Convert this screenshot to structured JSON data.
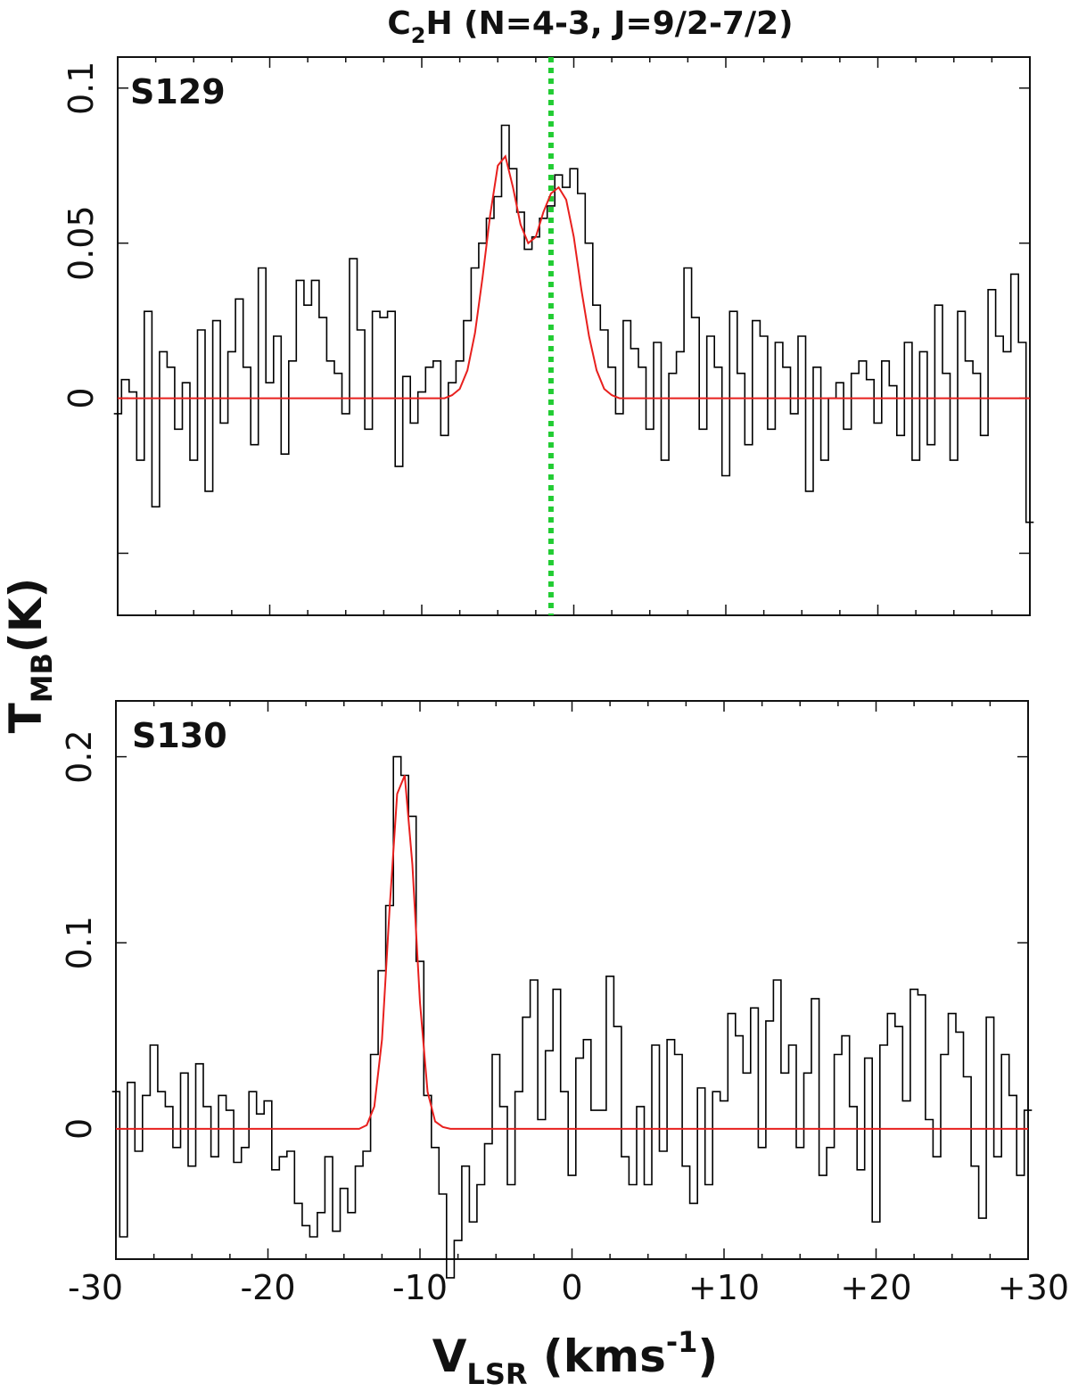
{
  "figure": {
    "title_main": "C",
    "title_sub": "2",
    "title_rest": "H (N=4-3, J=9/2-7/2)",
    "ylabel_main": "T",
    "ylabel_sub": "MB",
    "ylabel_rest": "(K)",
    "xlabel_main": "V",
    "xlabel_sub": "LSR",
    "xlabel_rest": " (kms",
    "xlabel_sup": "-1",
    "xlabel_close": ")"
  },
  "chart_data": [
    {
      "type": "line",
      "panel_label": "S129",
      "xlim": [
        -30,
        30
      ],
      "ylim": [
        -0.07,
        0.11
      ],
      "x_tick_labels": [
        "-30",
        "-20",
        "-10",
        "0",
        "+10",
        "+20",
        "+30"
      ],
      "x_ticks": [
        -30,
        -20,
        -10,
        0,
        10,
        20,
        30
      ],
      "y_ticks": [
        0,
        0.05,
        0.1
      ],
      "y_tick_labels": [
        "0",
        "0.05",
        "0.1"
      ],
      "grid": false,
      "reference_line": {
        "x": -1.5,
        "color": "#22cc33",
        "style": "dotted"
      },
      "series": [
        {
          "style": "step",
          "color": "#000000",
          "x": [
            -30.0,
            -29.5,
            -29.0,
            -28.5,
            -28.0,
            -27.5,
            -27.0,
            -26.5,
            -26.0,
            -25.5,
            -25.0,
            -24.5,
            -24.0,
            -23.5,
            -23.0,
            -22.5,
            -22.0,
            -21.5,
            -21.0,
            -20.5,
            -20.0,
            -19.5,
            -19.0,
            -18.5,
            -18.0,
            -17.5,
            -17.0,
            -16.5,
            -16.0,
            -15.5,
            -15.0,
            -14.5,
            -14.0,
            -13.5,
            -13.0,
            -12.5,
            -12.0,
            -11.5,
            -11.0,
            -10.5,
            -10.0,
            -9.5,
            -9.0,
            -8.5,
            -8.0,
            -7.5,
            -7.0,
            -6.5,
            -6.0,
            -5.5,
            -5.0,
            -4.5,
            -4.0,
            -3.5,
            -3.0,
            -2.5,
            -2.0,
            -1.5,
            -1.0,
            -0.5,
            0.0,
            0.5,
            1.0,
            1.5,
            2.0,
            2.5,
            3.0,
            3.5,
            4.0,
            4.5,
            5.0,
            5.5,
            6.0,
            6.5,
            7.0,
            7.5,
            8.0,
            8.5,
            9.0,
            9.5,
            10.0,
            10.5,
            11.0,
            11.5,
            12.0,
            12.5,
            13.0,
            13.5,
            14.0,
            14.5,
            15.0,
            15.5,
            16.0,
            16.5,
            17.0,
            17.5,
            18.0,
            18.5,
            19.0,
            19.5,
            20.0,
            20.5,
            21.0,
            21.5,
            22.0,
            22.5,
            23.0,
            23.5,
            24.0,
            24.5,
            25.0,
            25.5,
            26.0,
            26.5,
            27.0,
            27.5,
            28.0,
            28.5,
            29.0,
            29.5,
            30.0
          ],
          "y": [
            -0.005,
            0.006,
            0.002,
            -0.02,
            0.028,
            -0.035,
            0.015,
            0.01,
            -0.01,
            0.005,
            -0.02,
            0.022,
            -0.03,
            0.025,
            -0.008,
            0.015,
            0.032,
            0.01,
            -0.015,
            0.042,
            0.005,
            0.02,
            -0.018,
            0.012,
            0.038,
            0.03,
            0.038,
            0.026,
            0.012,
            0.008,
            -0.005,
            0.045,
            0.022,
            -0.01,
            0.028,
            0.026,
            0.028,
            -0.022,
            0.007,
            -0.008,
            0.002,
            0.01,
            0.012,
            -0.012,
            0.005,
            0.012,
            0.025,
            0.042,
            0.05,
            0.058,
            0.065,
            0.088,
            0.074,
            0.06,
            0.048,
            0.052,
            0.058,
            0.062,
            0.072,
            0.068,
            0.074,
            0.066,
            0.05,
            0.03,
            0.022,
            0.01,
            -0.005,
            0.025,
            0.016,
            0.01,
            -0.01,
            0.018,
            -0.02,
            0.008,
            0.015,
            0.042,
            0.026,
            -0.01,
            0.02,
            0.01,
            -0.025,
            0.028,
            0.008,
            -0.015,
            0.025,
            0.02,
            -0.01,
            0.018,
            0.01,
            -0.005,
            0.02,
            -0.03,
            0.01,
            -0.02,
            0.0,
            0.005,
            -0.01,
            0.008,
            0.012,
            0.006,
            -0.008,
            0.012,
            0.004,
            -0.012,
            0.018,
            -0.02,
            0.015,
            -0.015,
            0.03,
            0.008,
            -0.02,
            0.028,
            0.012,
            0.008,
            -0.012,
            0.035,
            0.02,
            0.015,
            0.04,
            0.018,
            -0.04
          ]
        },
        {
          "style": "line",
          "color": "#e8201e",
          "x": [
            -30,
            -8.5,
            -8.0,
            -7.5,
            -7.0,
            -6.5,
            -6.0,
            -5.5,
            -5.0,
            -4.5,
            -4.0,
            -3.5,
            -3.0,
            -2.5,
            -2.0,
            -1.5,
            -1.0,
            -0.5,
            0.0,
            0.5,
            1.0,
            1.5,
            2.0,
            2.5,
            3.0,
            3.5,
            30
          ],
          "y": [
            0.0,
            0.0,
            0.001,
            0.003,
            0.009,
            0.021,
            0.039,
            0.059,
            0.075,
            0.078,
            0.068,
            0.056,
            0.05,
            0.052,
            0.06,
            0.066,
            0.068,
            0.064,
            0.052,
            0.035,
            0.02,
            0.009,
            0.003,
            0.001,
            0.0,
            0.0,
            0.0
          ]
        }
      ]
    },
    {
      "type": "line",
      "panel_label": "S130",
      "xlim": [
        -30,
        30
      ],
      "ylim": [
        -0.07,
        0.23
      ],
      "x_tick_labels": [
        "-30",
        "-20",
        "-10",
        "0",
        "+10",
        "+20",
        "+30"
      ],
      "x_ticks": [
        -30,
        -20,
        -10,
        0,
        10,
        20,
        30
      ],
      "y_ticks": [
        0,
        0.1,
        0.2
      ],
      "y_tick_labels": [
        "0",
        "0.1",
        "0.2"
      ],
      "grid": false,
      "series": [
        {
          "style": "step",
          "color": "#000000",
          "x": [
            -30.0,
            -29.5,
            -29.0,
            -28.5,
            -28.0,
            -27.5,
            -27.0,
            -26.5,
            -26.0,
            -25.5,
            -25.0,
            -24.5,
            -24.0,
            -23.5,
            -23.0,
            -22.5,
            -22.0,
            -21.5,
            -21.0,
            -20.5,
            -20.0,
            -19.5,
            -19.0,
            -18.5,
            -18.0,
            -17.5,
            -17.0,
            -16.5,
            -16.0,
            -15.5,
            -15.0,
            -14.5,
            -14.0,
            -13.5,
            -13.0,
            -12.5,
            -12.0,
            -11.5,
            -11.0,
            -10.5,
            -10.0,
            -9.5,
            -9.0,
            -8.5,
            -8.0,
            -7.5,
            -7.0,
            -6.5,
            -6.0,
            -5.5,
            -5.0,
            -4.5,
            -4.0,
            -3.5,
            -3.0,
            -2.5,
            -2.0,
            -1.5,
            -1.0,
            -0.5,
            0.0,
            0.5,
            1.0,
            1.5,
            2.0,
            2.5,
            3.0,
            3.5,
            4.0,
            4.5,
            5.0,
            5.5,
            6.0,
            6.5,
            7.0,
            7.5,
            8.0,
            8.5,
            9.0,
            9.5,
            10.0,
            10.5,
            11.0,
            11.5,
            12.0,
            12.5,
            13.0,
            13.5,
            14.0,
            14.5,
            15.0,
            15.5,
            16.0,
            16.5,
            17.0,
            17.5,
            18.0,
            18.5,
            19.0,
            19.5,
            20.0,
            20.5,
            21.0,
            21.5,
            22.0,
            22.5,
            23.0,
            23.5,
            24.0,
            24.5,
            25.0,
            25.5,
            26.0,
            26.5,
            27.0,
            27.5,
            28.0,
            28.5,
            29.0,
            29.5,
            30.0
          ],
          "y": [
            0.02,
            -0.058,
            0.025,
            -0.012,
            0.018,
            0.045,
            0.02,
            0.012,
            -0.01,
            0.03,
            -0.02,
            0.035,
            0.012,
            -0.015,
            0.018,
            0.01,
            -0.018,
            -0.01,
            0.02,
            0.008,
            0.015,
            -0.022,
            -0.015,
            -0.012,
            -0.04,
            -0.052,
            -0.058,
            -0.045,
            -0.015,
            -0.055,
            -0.032,
            -0.045,
            -0.02,
            -0.012,
            0.04,
            0.085,
            0.12,
            0.2,
            0.19,
            0.168,
            0.09,
            0.018,
            -0.01,
            -0.035,
            -0.08,
            -0.06,
            -0.02,
            -0.05,
            -0.03,
            -0.008,
            0.04,
            0.012,
            -0.03,
            0.02,
            0.06,
            0.08,
            0.005,
            0.042,
            0.075,
            0.02,
            -0.025,
            0.038,
            0.048,
            0.01,
            0.01,
            0.082,
            0.055,
            -0.015,
            -0.03,
            0.012,
            -0.03,
            0.045,
            -0.012,
            0.048,
            0.04,
            -0.02,
            -0.04,
            0.022,
            -0.03,
            0.02,
            0.015,
            0.062,
            0.05,
            0.03,
            0.065,
            -0.01,
            0.058,
            0.08,
            0.03,
            0.045,
            -0.01,
            0.03,
            0.07,
            -0.025,
            -0.01,
            0.04,
            0.05,
            0.012,
            -0.022,
            0.038,
            -0.05,
            0.045,
            0.062,
            0.055,
            0.015,
            0.075,
            0.072,
            0.005,
            -0.015,
            0.04,
            0.062,
            0.052,
            0.028,
            -0.02,
            -0.048,
            0.06,
            -0.015,
            0.04,
            0.018,
            -0.025,
            0.01
          ]
        },
        {
          "style": "line",
          "color": "#e8201e",
          "x": [
            -30,
            -14.0,
            -13.5,
            -13.0,
            -12.5,
            -12.0,
            -11.5,
            -11.0,
            -10.5,
            -10.0,
            -9.5,
            -9.0,
            -8.5,
            -8.0,
            30
          ],
          "y": [
            0.0,
            0.0,
            0.002,
            0.012,
            0.048,
            0.118,
            0.18,
            0.19,
            0.142,
            0.068,
            0.02,
            0.004,
            0.001,
            0.0,
            0.0
          ]
        }
      ]
    }
  ]
}
